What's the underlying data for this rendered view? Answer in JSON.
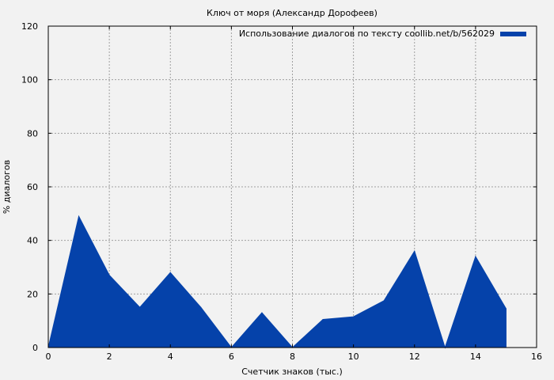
{
  "chart_data": {
    "type": "area",
    "title": "Ключ от моря (Александр Дорофеев)",
    "xlabel": "Счетчик знаков (тыс.)",
    "ylabel": "% диалогов",
    "xlim": [
      0,
      16
    ],
    "ylim": [
      0,
      120
    ],
    "xticks": [
      0,
      2,
      4,
      6,
      8,
      10,
      12,
      14,
      16
    ],
    "yticks": [
      0,
      20,
      40,
      60,
      80,
      100,
      120
    ],
    "grid": true,
    "legend_position": "top-right",
    "series": [
      {
        "name": "Использование диалогов по тексту coollib.net/b/562029",
        "color": "#0542aa",
        "x": [
          0,
          1,
          2,
          3,
          4,
          5,
          6,
          7,
          8,
          9,
          10,
          11,
          12,
          13,
          14,
          15
        ],
        "y": [
          0,
          49,
          27,
          15,
          28,
          15,
          0,
          13,
          0,
          10.5,
          11.5,
          17.5,
          36,
          0,
          34,
          14.5
        ]
      }
    ]
  }
}
